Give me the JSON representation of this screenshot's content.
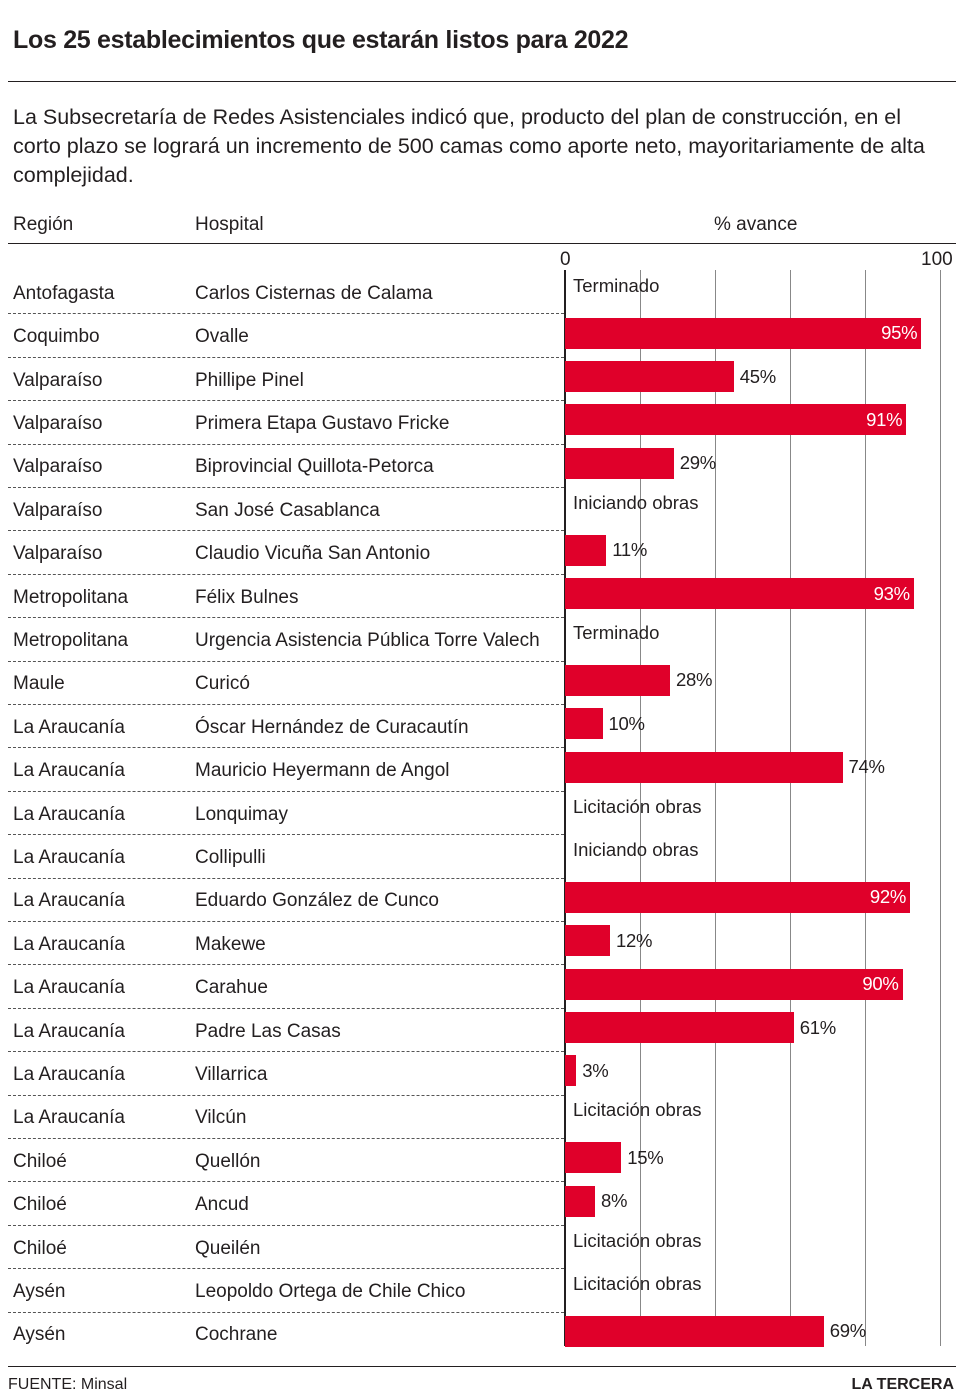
{
  "title": "Los 25 establecimientos que estarán listos para 2022",
  "subtitle": "La Subsecretaría de Redes Asistenciales indicó que, producto del plan de construcción, en el corto plazo se logrará un incremento de 500 camas como aporte neto, mayoritariamente de alta complejidad.",
  "headers": {
    "region": "Región",
    "hospital": "Hospital",
    "progress": "% avance"
  },
  "footer": {
    "source": "FUENTE: Minsal",
    "brand": "LA TERCERA"
  },
  "colors": {
    "bar": "#e0002a",
    "text": "#231f20"
  },
  "chart_data": {
    "type": "bar",
    "orientation": "horizontal",
    "xlim": [
      0,
      100
    ],
    "xticks": [
      "0",
      "100"
    ],
    "xlabel": "% avance",
    "grid": true,
    "rows": [
      {
        "region": "Antofagasta",
        "hospital": "Carlos Cisternas de Calama",
        "value": null,
        "label": "Terminado"
      },
      {
        "region": "Coquimbo",
        "hospital": "Ovalle",
        "value": 95,
        "label": "95%"
      },
      {
        "region": "Valparaíso",
        "hospital": "Phillipe Pinel",
        "value": 45,
        "label": "45%"
      },
      {
        "region": "Valparaíso",
        "hospital": "Primera Etapa Gustavo Fricke",
        "value": 91,
        "label": "91%"
      },
      {
        "region": "Valparaíso",
        "hospital": "Biprovincial Quillota-Petorca",
        "value": 29,
        "label": "29%"
      },
      {
        "region": "Valparaíso",
        "hospital": "San José Casablanca",
        "value": null,
        "label": "Iniciando obras"
      },
      {
        "region": "Valparaíso",
        "hospital": "Claudio Vicuña San Antonio",
        "value": 11,
        "label": "11%"
      },
      {
        "region": "Metropolitana",
        "hospital": "Félix Bulnes",
        "value": 93,
        "label": "93%"
      },
      {
        "region": "Metropolitana",
        "hospital": "Urgencia Asistencia Pública Torre Valech",
        "value": null,
        "label": "Terminado"
      },
      {
        "region": "Maule",
        "hospital": "Curicó",
        "value": 28,
        "label": "28%"
      },
      {
        "region": "La Araucanía",
        "hospital": "Óscar Hernández de Curacautín",
        "value": 10,
        "label": "10%"
      },
      {
        "region": "La Araucanía",
        "hospital": "Mauricio Heyermann de Angol",
        "value": 74,
        "label": "74%"
      },
      {
        "region": "La Araucanía",
        "hospital": "Lonquimay",
        "value": null,
        "label": "Licitación obras"
      },
      {
        "region": "La Araucanía",
        "hospital": "Collipulli",
        "value": null,
        "label": "Iniciando obras"
      },
      {
        "region": "La Araucanía",
        "hospital": "Eduardo González de Cunco",
        "value": 92,
        "label": "92%"
      },
      {
        "region": "La Araucanía",
        "hospital": "Makewe",
        "value": 12,
        "label": "12%"
      },
      {
        "region": "La Araucanía",
        "hospital": "Carahue",
        "value": 90,
        "label": "90%"
      },
      {
        "region": "La Araucanía",
        "hospital": "Padre Las Casas",
        "value": 61,
        "label": "61%"
      },
      {
        "region": "La Araucanía",
        "hospital": "Villarrica",
        "value": 3,
        "label": "3%"
      },
      {
        "region": "La Araucanía",
        "hospital": "Vilcún",
        "value": null,
        "label": "Licitación obras"
      },
      {
        "region": "Chiloé",
        "hospital": "Quellón",
        "value": 15,
        "label": "15%"
      },
      {
        "region": "Chiloé",
        "hospital": "Ancud",
        "value": 8,
        "label": "8%"
      },
      {
        "region": "Chiloé",
        "hospital": "Queilén",
        "value": null,
        "label": "Licitación obras"
      },
      {
        "region": "Aysén",
        "hospital": "Leopoldo Ortega de Chile Chico",
        "value": null,
        "label": "Licitación obras"
      },
      {
        "region": "Aysén",
        "hospital": "Cochrane",
        "value": 69,
        "label": "69%"
      }
    ]
  }
}
